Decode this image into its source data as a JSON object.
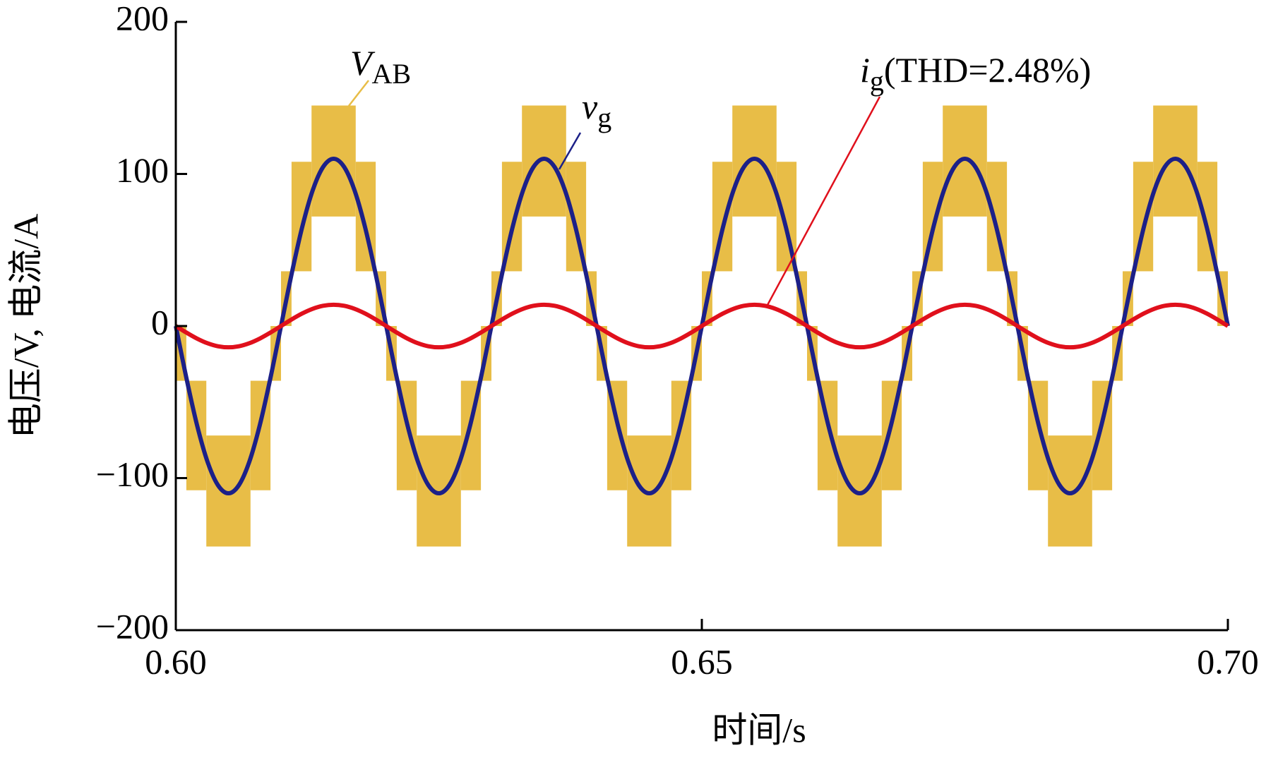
{
  "chart_data": {
    "type": "line",
    "xlabel": "时间/s",
    "ylabel": "电压/V, 电流/A",
    "xlim": [
      0.6,
      0.7
    ],
    "ylim": [
      -200,
      200
    ],
    "xticks": [
      {
        "value": 0.6,
        "label": "0.60"
      },
      0.65,
      {
        "value": 0.7,
        "label": "0.70"
      }
    ],
    "yticks": [
      {
        "value": -200,
        "label": "−200"
      },
      {
        "value": -100,
        "label": "−100"
      },
      0,
      100,
      200
    ],
    "x": [
      0.6,
      0.601,
      0.602,
      0.603,
      0.604,
      0.605,
      0.606,
      0.607,
      0.608,
      0.609,
      0.61,
      0.611,
      0.612,
      0.613,
      0.614,
      0.615,
      0.616,
      0.617,
      0.618,
      0.619,
      0.62,
      0.621,
      0.622,
      0.623,
      0.624,
      0.625,
      0.626,
      0.627,
      0.628,
      0.629,
      0.63,
      0.631,
      0.632,
      0.633,
      0.634,
      0.635,
      0.636,
      0.637,
      0.638,
      0.639,
      0.64,
      0.641,
      0.642,
      0.643,
      0.644,
      0.645,
      0.646,
      0.647,
      0.648,
      0.649,
      0.65,
      0.651,
      0.652,
      0.653,
      0.654,
      0.655,
      0.656,
      0.657,
      0.658,
      0.659,
      0.66,
      0.661,
      0.662,
      0.663,
      0.664,
      0.665,
      0.666,
      0.667,
      0.668,
      0.669,
      0.67,
      0.671,
      0.672,
      0.673,
      0.674,
      0.675,
      0.676,
      0.677,
      0.678,
      0.679,
      0.68,
      0.681,
      0.682,
      0.683,
      0.684,
      0.685,
      0.686,
      0.687,
      0.688,
      0.689,
      0.69,
      0.691,
      0.692,
      0.693,
      0.694,
      0.695,
      0.696,
      0.697,
      0.698,
      0.699,
      0.7
    ],
    "series": [
      {
        "name": "V",
        "name_sub": "AB",
        "color": "#e8bd47",
        "edges": [
          0.6,
          0.601,
          0.6029,
          0.6071,
          0.609,
          0.61,
          0.611,
          0.6129,
          0.6171,
          0.619,
          0.62,
          0.621,
          0.6229,
          0.6271,
          0.629,
          0.63,
          0.631,
          0.6329,
          0.6371,
          0.639,
          0.64,
          0.641,
          0.6429,
          0.6471,
          0.649,
          0.65,
          0.651,
          0.6529,
          0.6571,
          0.659,
          0.66,
          0.661,
          0.6629,
          0.6671,
          0.669,
          0.67,
          0.671,
          0.6729,
          0.6771,
          0.679,
          0.68,
          0.681,
          0.6829,
          0.6871,
          0.689,
          0.69,
          0.691,
          0.6929,
          0.6971,
          0.699,
          0.7
        ],
        "low": [
          -36,
          -108,
          -145,
          -108,
          -36,
          0,
          36,
          72,
          36,
          0,
          -36,
          -108,
          -145,
          -108,
          -36,
          0,
          36,
          72,
          36,
          0,
          -36,
          -108,
          -145,
          -108,
          -36,
          0,
          36,
          72,
          36,
          0,
          -36,
          -108,
          -145,
          -108,
          -36,
          0,
          36,
          72,
          36,
          0,
          -36,
          -108,
          -145,
          -108,
          -36,
          0,
          36,
          72,
          36,
          0
        ],
        "high": [
          0,
          -36,
          -72,
          -36,
          0,
          36,
          108,
          145,
          108,
          36,
          0,
          -36,
          -72,
          -36,
          0,
          36,
          108,
          145,
          108,
          36,
          0,
          -36,
          -72,
          -36,
          0,
          36,
          108,
          145,
          108,
          36,
          0,
          -36,
          -72,
          -36,
          0,
          36,
          108,
          145,
          108,
          36,
          0,
          -36,
          -72,
          -36,
          0,
          36,
          108,
          145,
          108,
          36
        ]
      },
      {
        "name": "v",
        "name_sub": "g",
        "color": "#1c2088",
        "values": [
          0,
          -34,
          -64.7,
          -89,
          -104.6,
          -110,
          -104.6,
          -89,
          -64.7,
          -34,
          0,
          34,
          64.7,
          89,
          104.6,
          110,
          104.6,
          89,
          64.7,
          34,
          0,
          -34,
          -64.7,
          -89,
          -104.6,
          -110,
          -104.6,
          -89,
          -64.7,
          -34,
          0,
          34,
          64.7,
          89,
          104.6,
          110,
          104.6,
          89,
          64.7,
          34,
          0,
          -34,
          -64.7,
          -89,
          -104.6,
          -110,
          -104.6,
          -89,
          -64.7,
          -34,
          0,
          34,
          64.7,
          89,
          104.6,
          110,
          104.6,
          89,
          64.7,
          34,
          0,
          -34,
          -64.7,
          -89,
          -104.6,
          -110,
          -104.6,
          -89,
          -64.7,
          -34,
          0,
          34,
          64.7,
          89,
          104.6,
          110,
          104.6,
          89,
          64.7,
          34,
          0,
          -34,
          -64.7,
          -89,
          -104.6,
          -110,
          -104.6,
          -89,
          -64.7,
          -34,
          0,
          34,
          64.7,
          89,
          104.6,
          110,
          104.6,
          89,
          64.7,
          34,
          0
        ]
      },
      {
        "name": "i",
        "name_sub": "g",
        "name_suffix": "(THD=2.48%)",
        "color": "#e0101c",
        "values": [
          0,
          -4.3,
          -8.2,
          -11.3,
          -13.3,
          -14,
          -13.3,
          -11.3,
          -8.2,
          -4.3,
          0,
          4.3,
          8.2,
          11.3,
          13.3,
          14,
          13.3,
          11.3,
          8.2,
          4.3,
          0,
          -4.3,
          -8.2,
          -11.3,
          -13.3,
          -14,
          -13.3,
          -11.3,
          -8.2,
          -4.3,
          0,
          4.3,
          8.2,
          11.3,
          13.3,
          14,
          13.3,
          11.3,
          8.2,
          4.3,
          0,
          -4.3,
          -8.2,
          -11.3,
          -13.3,
          -14,
          -13.3,
          -11.3,
          -8.2,
          -4.3,
          0,
          4.3,
          8.2,
          11.3,
          13.3,
          14,
          13.3,
          11.3,
          8.2,
          4.3,
          0,
          -4.3,
          -8.2,
          -11.3,
          -13.3,
          -14,
          -13.3,
          -11.3,
          -8.2,
          -4.3,
          0,
          4.3,
          8.2,
          11.3,
          13.3,
          14,
          13.3,
          11.3,
          8.2,
          4.3,
          0,
          -4.3,
          -8.2,
          -11.3,
          -13.3,
          -14,
          -13.3,
          -11.3,
          -8.2,
          -4.3,
          0,
          4.3,
          8.2,
          11.3,
          13.3,
          14,
          13.3,
          11.3,
          8.2,
          4.3,
          0
        ]
      }
    ]
  }
}
